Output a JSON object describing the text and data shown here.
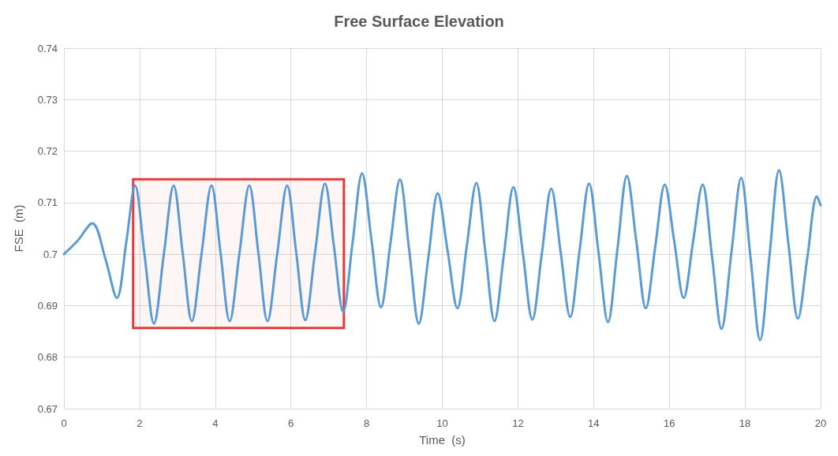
{
  "chart_data": {
    "type": "line",
    "title": "Free Surface Elevation",
    "xlabel": "Time  (s)",
    "ylabel": "FSE  (m)",
    "x": [
      0,
      0.35,
      0.75,
      1.1,
      1.4,
      1.65,
      1.88,
      2.13,
      2.38,
      2.64,
      2.9,
      3.14,
      3.38,
      3.64,
      3.9,
      4.14,
      4.38,
      4.64,
      4.9,
      5.14,
      5.38,
      5.64,
      5.9,
      6.14,
      6.38,
      6.64,
      6.9,
      7.14,
      7.38,
      7.63,
      7.88,
      8.13,
      8.38,
      8.63,
      8.88,
      9.13,
      9.38,
      9.63,
      9.88,
      10.14,
      10.4,
      10.65,
      10.9,
      11.14,
      11.38,
      11.63,
      11.88,
      12.13,
      12.38,
      12.63,
      12.88,
      13.13,
      13.38,
      13.63,
      13.88,
      14.13,
      14.38,
      14.63,
      14.88,
      15.13,
      15.38,
      15.63,
      15.88,
      16.13,
      16.38,
      16.63,
      16.88,
      17.13,
      17.38,
      17.64,
      17.9,
      18.15,
      18.4,
      18.65,
      18.9,
      19.15,
      19.4,
      19.65,
      19.9,
      20
    ],
    "series": [
      {
        "color": "#5b9bd5",
        "values": [
          0.7,
          0.7025,
          0.706,
          0.699,
          0.6915,
          0.7024,
          0.7133,
          0.6999,
          0.6865,
          0.6999,
          0.7133,
          0.7002,
          0.687,
          0.7002,
          0.7133,
          0.7002,
          0.687,
          0.7002,
          0.7133,
          0.7002,
          0.687,
          0.7002,
          0.7133,
          0.7003,
          0.6872,
          0.7005,
          0.7137,
          0.7013,
          0.6888,
          0.7023,
          0.7157,
          0.7027,
          0.6897,
          0.7021,
          0.7145,
          0.7005,
          0.6865,
          0.6992,
          0.7118,
          0.7007,
          0.6895,
          0.7017,
          0.7138,
          0.7004,
          0.687,
          0.7,
          0.713,
          0.7002,
          0.6873,
          0.7,
          0.7127,
          0.7003,
          0.6878,
          0.7008,
          0.7137,
          0.7003,
          0.6868,
          0.701,
          0.7152,
          0.7024,
          0.6895,
          0.7015,
          0.7135,
          0.7025,
          0.6915,
          0.7025,
          0.7135,
          0.6995,
          0.6855,
          0.7002,
          0.7148,
          0.6991,
          0.6833,
          0.6998,
          0.7163,
          0.7019,
          0.6875,
          0.6994,
          0.7112,
          0.7095
        ]
      }
    ],
    "xlim": [
      0,
      20
    ],
    "xticks": [
      0,
      2,
      4,
      6,
      8,
      10,
      12,
      14,
      16,
      18,
      20
    ],
    "ylim": [
      0.67,
      0.74
    ],
    "yticks": [
      0.67,
      0.68,
      0.69,
      0.7,
      0.71,
      0.72,
      0.73,
      0.74
    ],
    "grid": true,
    "marker": "none",
    "bands": [
      {
        "axis": "x",
        "from": 1.83,
        "to": 7.4,
        "color": "#e8393a"
      }
    ]
  }
}
